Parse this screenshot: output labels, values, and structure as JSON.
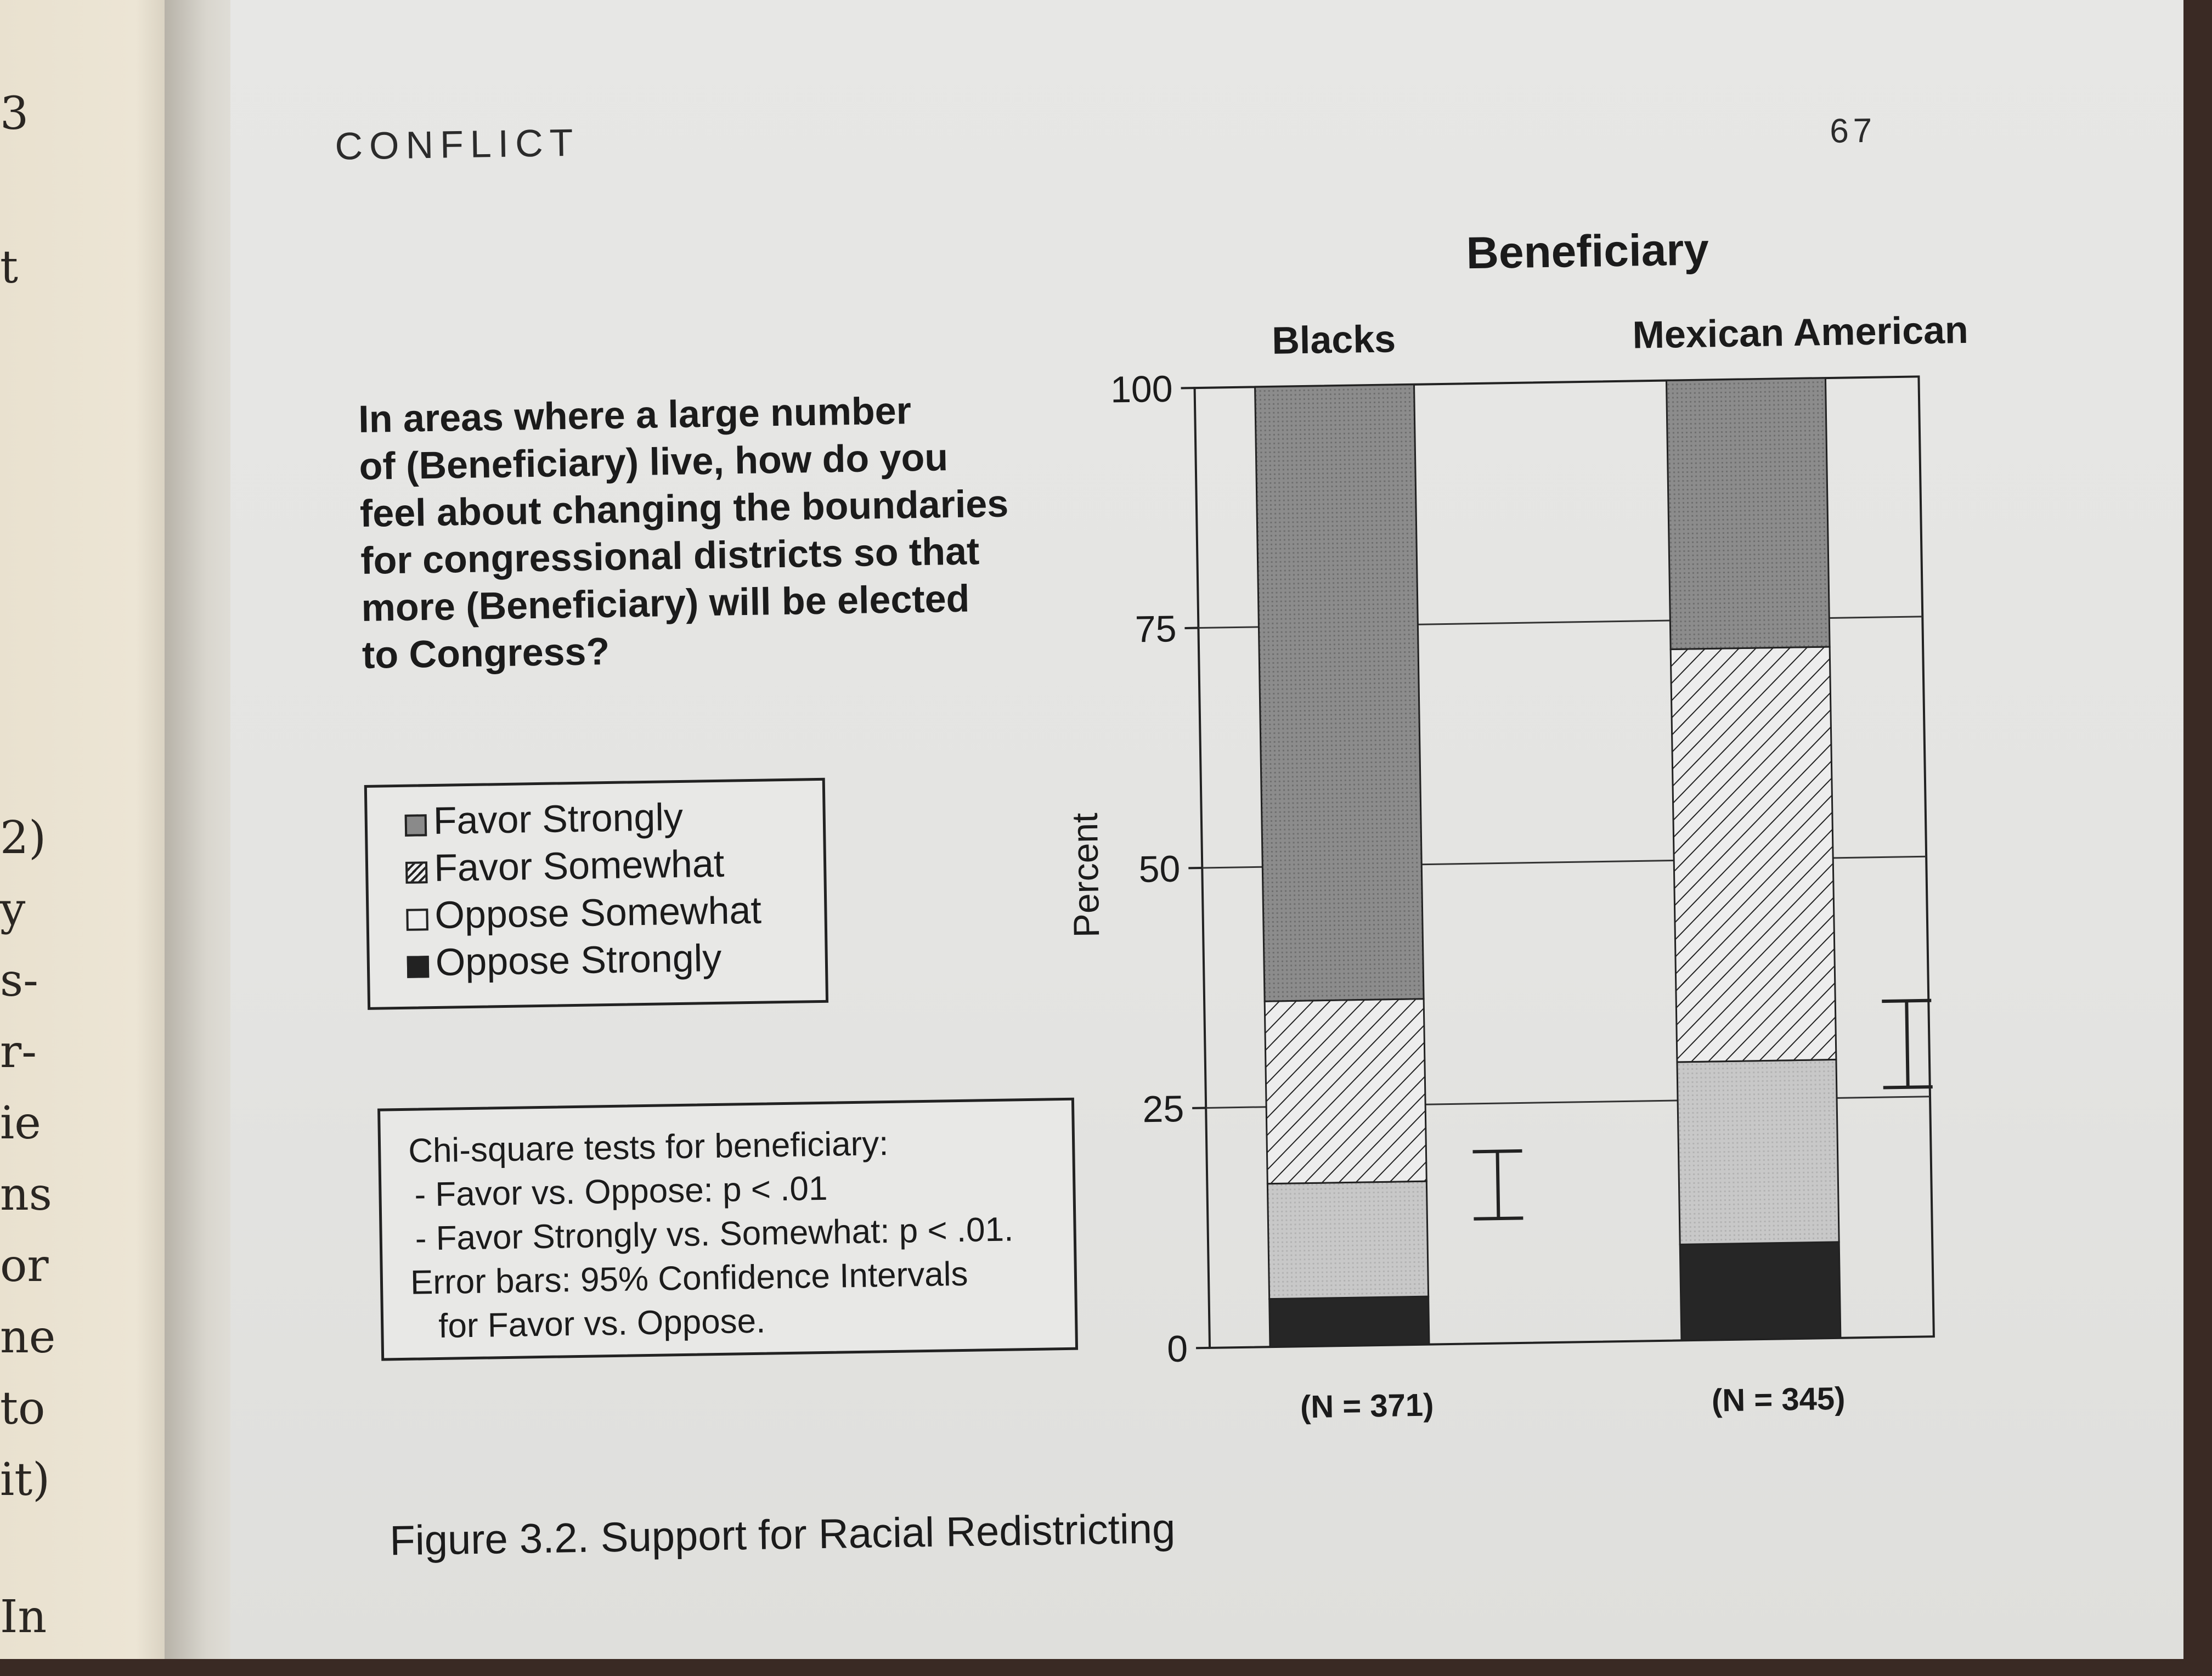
{
  "left_page_fragments": [
    "3",
    "t",
    "2)",
    "y",
    "s-",
    "r-",
    "ie",
    "ns",
    "or",
    "ne",
    "to",
    "it)",
    "In"
  ],
  "header": {
    "running_head": "CONFLICT",
    "page_number": "67"
  },
  "question": {
    "lines": [
      "In areas where a large number",
      "of (Beneficiary) live, how do you",
      "feel about changing the boundaries",
      "for congressional districts so that",
      "more (Beneficiary) will be elected",
      "to Congress?"
    ]
  },
  "legend": {
    "items": [
      {
        "label": "Favor Strongly",
        "pattern": "gray"
      },
      {
        "label": "Favor Somewhat",
        "pattern": "hatched"
      },
      {
        "label": "Oppose Somewhat",
        "pattern": "white"
      },
      {
        "label": "Oppose Strongly",
        "pattern": "black"
      }
    ]
  },
  "stats_box": {
    "lines": [
      "Chi-square tests for beneficiary:",
      "- Favor vs. Oppose: p < .01",
      "- Favor Strongly vs. Somewhat: p < .01.",
      "Error bars: 95% Confidence Intervals",
      "for Favor vs. Oppose."
    ]
  },
  "caption": "Figure 3.2. Support for Racial Redistricting",
  "chart_data": {
    "type": "bar",
    "stacked": true,
    "title": "Beneficiary",
    "ylabel": "Percent",
    "ylim": [
      0,
      100
    ],
    "yticks": [
      0,
      25,
      50,
      75,
      100
    ],
    "grid": true,
    "categories": [
      "Blacks",
      "Mexican Americans"
    ],
    "n_labels": [
      "(N = 371)",
      "(N = 345)"
    ],
    "series": [
      {
        "name": "Oppose Strongly",
        "values": [
          5,
          10
        ],
        "color": "#222222"
      },
      {
        "name": "Oppose Somewhat",
        "values": [
          12,
          19
        ],
        "color": "#c4c4c4"
      },
      {
        "name": "Favor Somewhat",
        "values": [
          19,
          43
        ],
        "color": "#ececec"
      },
      {
        "name": "Favor Strongly",
        "values": [
          64,
          28
        ],
        "color": "#8a8a8a"
      }
    ],
    "error_bars": [
      {
        "category": "Blacks",
        "low": 13,
        "high": 20
      },
      {
        "category": "Mexican Americans",
        "low": 26,
        "high": 35
      }
    ]
  }
}
